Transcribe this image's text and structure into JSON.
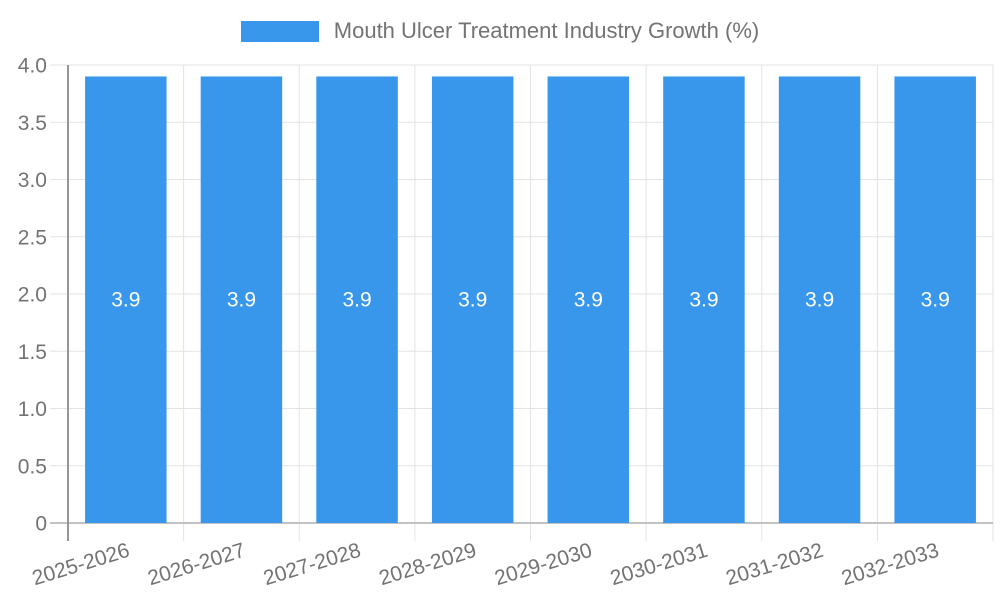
{
  "chart_data": {
    "type": "bar",
    "title": "Mouth Ulcer Treatment Industry Growth (%)",
    "legend": {
      "position": "top",
      "items": [
        {
          "label": "Mouth Ulcer Treatment Industry Growth (%)",
          "color": "#3997EB"
        }
      ]
    },
    "categories": [
      "2025-2026",
      "2026-2027",
      "2027-2028",
      "2028-2029",
      "2029-2030",
      "2030-2031",
      "2031-2032",
      "2032-2033"
    ],
    "series": [
      {
        "name": "Mouth Ulcer Treatment Industry Growth (%)",
        "values": [
          3.9,
          3.9,
          3.9,
          3.9,
          3.9,
          3.9,
          3.9,
          3.9
        ]
      }
    ],
    "value_labels": [
      "3.9",
      "3.9",
      "3.9",
      "3.9",
      "3.9",
      "3.9",
      "3.9",
      "3.9"
    ],
    "xlabel": "",
    "ylabel": "",
    "ylim": [
      0,
      4
    ],
    "yticks": [
      {
        "value": 0,
        "label": "0"
      },
      {
        "value": 0.5,
        "label": "0.5"
      },
      {
        "value": 1,
        "label": "1.0"
      },
      {
        "value": 1.5,
        "label": "1.5"
      },
      {
        "value": 2,
        "label": "2.0"
      },
      {
        "value": 2.5,
        "label": "2.5"
      },
      {
        "value": 3,
        "label": "3.0"
      },
      {
        "value": 3.5,
        "label": "3.5"
      },
      {
        "value": 4,
        "label": "4.0"
      }
    ],
    "grid": {
      "horizontal": true,
      "vertical": true
    },
    "x_label_rotation_deg": -17,
    "colors": {
      "bar": "#3997EB",
      "grid_line": "#E3E3E3",
      "axis_line": "#969696",
      "baseline": "#C2C2C2",
      "tick_text": "#737373",
      "legend_text": "#737373",
      "bar_label_text": "#FFFFFF",
      "background": "#FFFFFF"
    }
  }
}
